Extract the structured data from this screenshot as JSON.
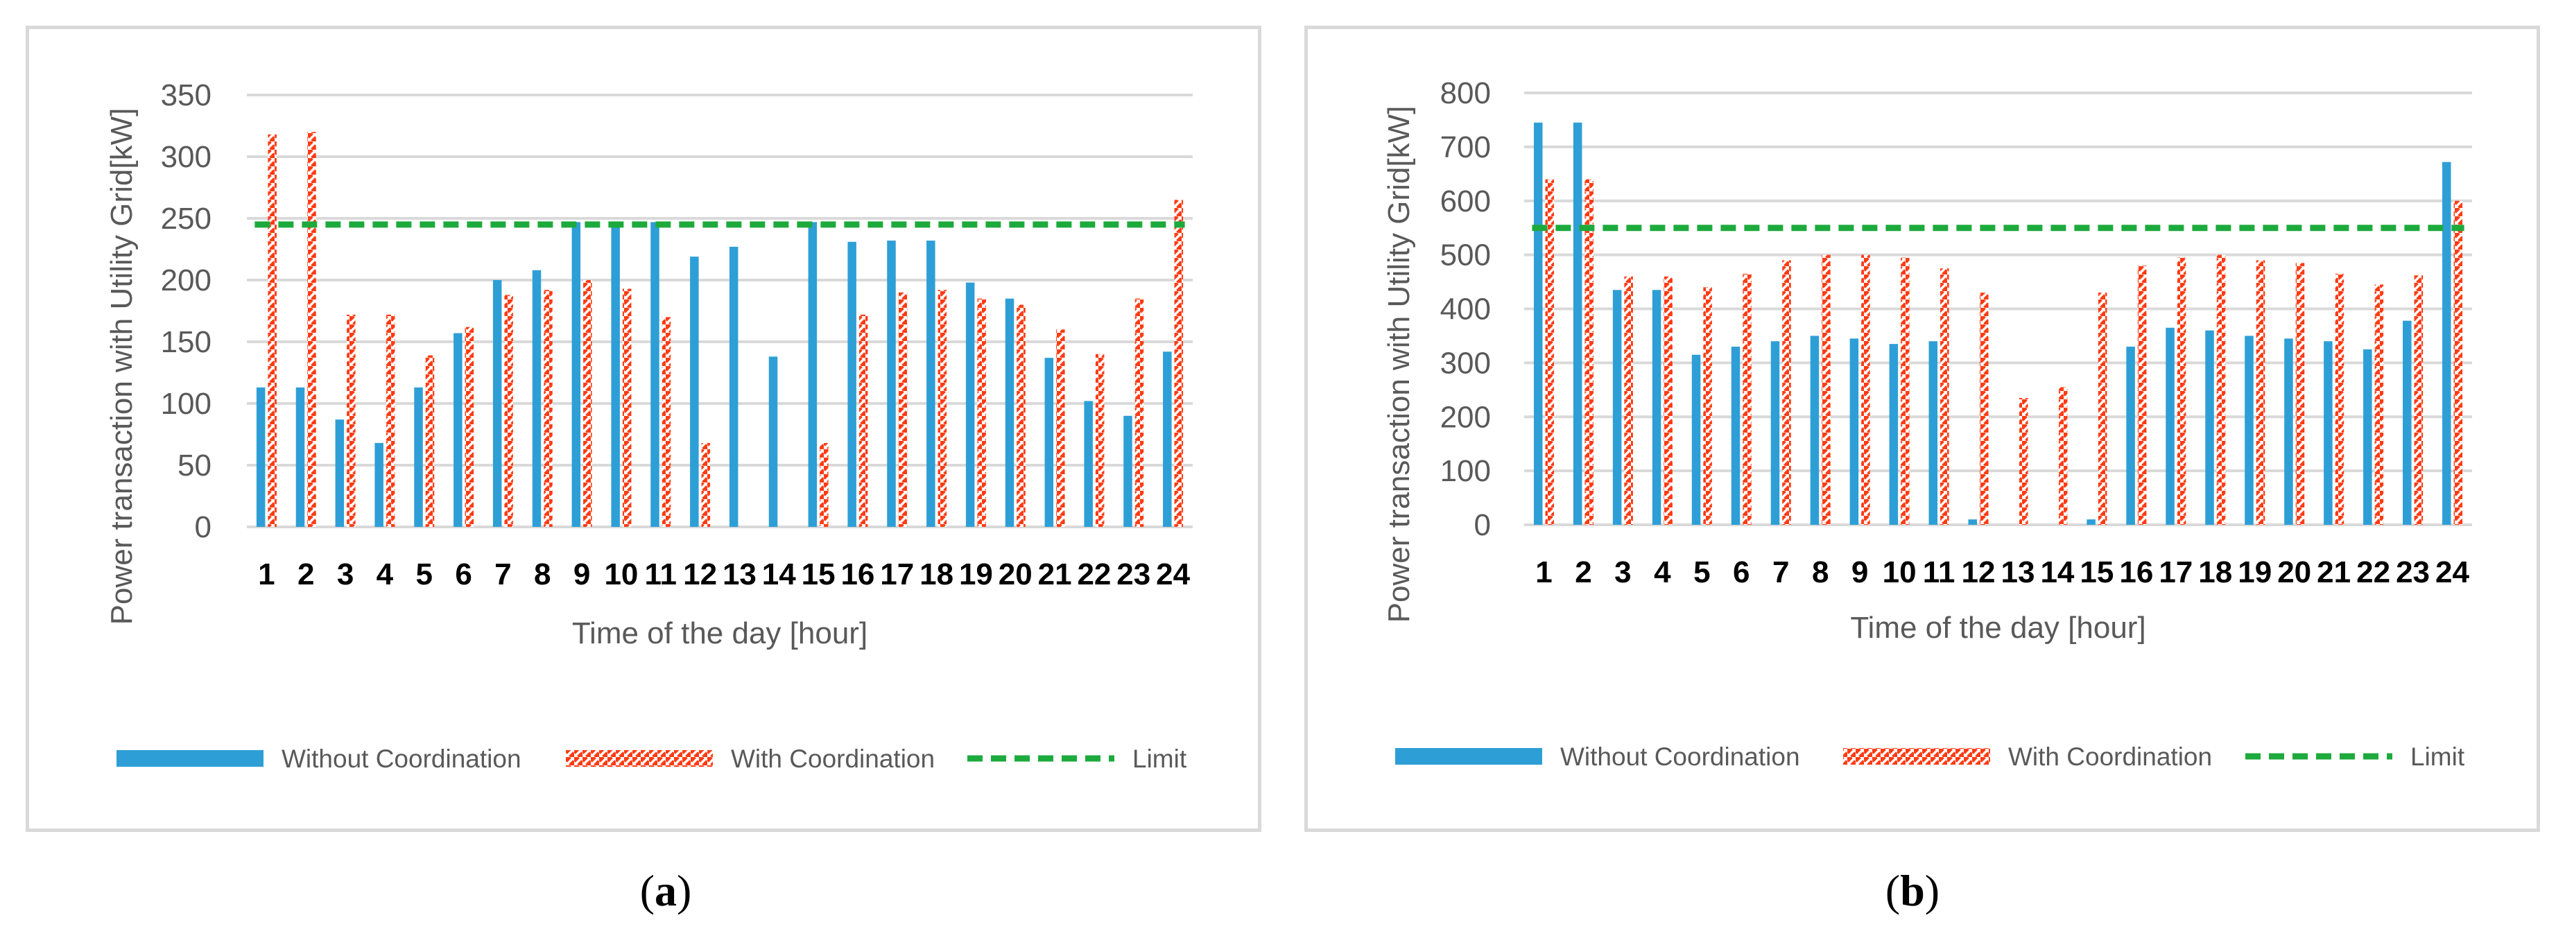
{
  "colors": {
    "without": "#2e9fd6",
    "with": "#ff3b14",
    "limit": "#1daa3c",
    "grid": "#d9d9d9"
  },
  "chart_data": [
    {
      "type": "bar",
      "panel": "a",
      "caption_letter": "a",
      "xlabel": "Time of the day [hour]",
      "ylabel": "Power transaction with Utility Grid[kW]",
      "ylim": [
        0,
        350
      ],
      "yticks": [
        0,
        50,
        100,
        150,
        200,
        250,
        300,
        350
      ],
      "categories": [
        "1",
        "2",
        "3",
        "4",
        "5",
        "6",
        "7",
        "8",
        "9",
        "10",
        "11",
        "12",
        "13",
        "14",
        "15",
        "16",
        "17",
        "18",
        "19",
        "20",
        "21",
        "22",
        "23",
        "24"
      ],
      "series": [
        {
          "name": "Without Coordination",
          "values": [
            113,
            113,
            87,
            68,
            113,
            157,
            200,
            208,
            247,
            247,
            247,
            219,
            227,
            138,
            247,
            231,
            232,
            232,
            198,
            185,
            137,
            102,
            90,
            142
          ]
        },
        {
          "name": "With Coordination",
          "values": [
            318,
            320,
            172,
            172,
            139,
            162,
            188,
            192,
            200,
            193,
            170,
            68,
            0,
            0,
            68,
            172,
            190,
            192,
            185,
            180,
            160,
            140,
            185,
            265
          ]
        }
      ],
      "limit": {
        "name": "Limit",
        "value": 245
      }
    },
    {
      "type": "bar",
      "panel": "b",
      "caption_letter": "b",
      "xlabel": "Time of the day [hour]",
      "ylabel": "Power transaction with Utility Grid[kW]",
      "ylim": [
        0,
        800
      ],
      "yticks": [
        0,
        100,
        200,
        300,
        400,
        500,
        600,
        700,
        800
      ],
      "categories": [
        "1",
        "2",
        "3",
        "4",
        "5",
        "6",
        "7",
        "8",
        "9",
        "10",
        "11",
        "12",
        "13",
        "14",
        "15",
        "16",
        "17",
        "18",
        "19",
        "20",
        "21",
        "22",
        "23",
        "24"
      ],
      "series": [
        {
          "name": "Without Coordination",
          "values": [
            745,
            745,
            435,
            435,
            315,
            330,
            340,
            350,
            345,
            335,
            340,
            10,
            0,
            0,
            10,
            330,
            365,
            360,
            350,
            345,
            340,
            325,
            378,
            672
          ]
        },
        {
          "name": "With Coordination",
          "values": [
            640,
            640,
            460,
            460,
            440,
            465,
            490,
            500,
            500,
            495,
            475,
            430,
            235,
            255,
            430,
            480,
            495,
            500,
            490,
            485,
            465,
            445,
            462,
            600
          ]
        }
      ],
      "limit": {
        "name": "Limit",
        "value": 550
      }
    }
  ]
}
